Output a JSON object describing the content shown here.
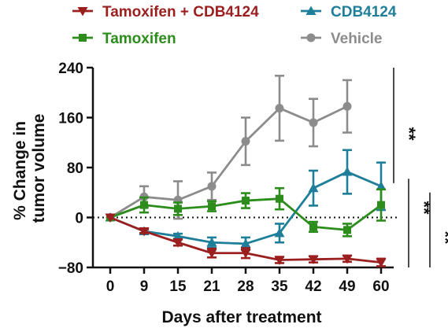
{
  "chart_data": {
    "type": "line",
    "xlabel": "Days after treatment",
    "ylabel": [
      "% Change in",
      "tumor volume"
    ],
    "ylim": [
      -80,
      240
    ],
    "yticks": [
      -80,
      0,
      80,
      160,
      240
    ],
    "categories": [
      "0",
      "9",
      "15",
      "21",
      "28",
      "35",
      "42",
      "49",
      "60"
    ],
    "zero_line": "dotted",
    "series": [
      {
        "name": "Vehicle",
        "color": "#8c8c8c",
        "marker": "circle",
        "values": [
          0,
          33,
          28,
          50,
          122,
          175,
          152,
          178,
          null
        ],
        "errors": [
          0,
          17,
          30,
          22,
          38,
          52,
          38,
          42,
          null
        ]
      },
      {
        "name": "CDB4124",
        "color": "#1f7f9a",
        "marker": "triangle-up",
        "values": [
          0,
          -22,
          -30,
          -40,
          -42,
          -25,
          47,
          73,
          50
        ],
        "errors": [
          0,
          4,
          4,
          8,
          10,
          15,
          28,
          35,
          38
        ]
      },
      {
        "name": "Tamoxifen",
        "color": "#2c8c1c",
        "marker": "square",
        "values": [
          0,
          20,
          14,
          18,
          27,
          30,
          -15,
          -20,
          20
        ],
        "errors": [
          0,
          12,
          10,
          8,
          12,
          17,
          8,
          10,
          25
        ]
      },
      {
        "name": "Tamoxifen + CDB4124",
        "color": "#9c1f1f",
        "marker": "triangle-down",
        "values": [
          0,
          -22,
          -40,
          -57,
          -57,
          -68,
          -67,
          -66,
          -72
        ],
        "errors": [
          0,
          3,
          5,
          7,
          8,
          5,
          5,
          5,
          6
        ]
      }
    ],
    "legend": {
      "placement": "top",
      "order": [
        "Tamoxifen + CDB4124",
        "CDB4124",
        "Tamoxifen",
        "Vehicle"
      ]
    },
    "significance": [
      {
        "label": "**",
        "from": 240,
        "to": 55
      },
      {
        "label": "**",
        "from": 62,
        "to": -80
      },
      {
        "label": "**",
        "from": 40,
        "to": -80
      }
    ]
  }
}
